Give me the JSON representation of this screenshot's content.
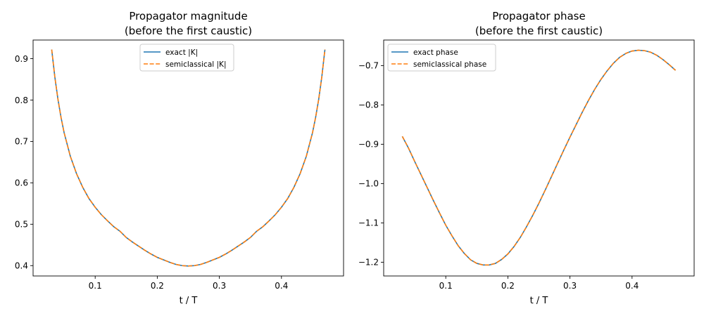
{
  "chart_data": [
    {
      "type": "line",
      "title": [
        "Propagator magnitude",
        "(before the first caustic)"
      ],
      "xlabel": "t / T",
      "ylabel": "",
      "xlim": [
        0.0,
        0.5
      ],
      "ylim": [
        0.375,
        0.945
      ],
      "xticks": [
        0.1,
        0.2,
        0.3,
        0.4
      ],
      "xtick_labels": [
        "0.1",
        "0.2",
        "0.3",
        "0.4"
      ],
      "yticks": [
        0.4,
        0.5,
        0.6,
        0.7,
        0.8,
        0.9
      ],
      "ytick_labels": [
        "0.4",
        "0.5",
        "0.6",
        "0.7",
        "0.8",
        "0.9"
      ],
      "legend_position": "upper center",
      "x": [
        0.03,
        0.035,
        0.04,
        0.045,
        0.05,
        0.06,
        0.07,
        0.08,
        0.09,
        0.1,
        0.11,
        0.12,
        0.13,
        0.14,
        0.15,
        0.16,
        0.17,
        0.18,
        0.19,
        0.2,
        0.21,
        0.22,
        0.23,
        0.24,
        0.25,
        0.26,
        0.27,
        0.28,
        0.29,
        0.3,
        0.31,
        0.32,
        0.33,
        0.34,
        0.35,
        0.36,
        0.37,
        0.38,
        0.39,
        0.4,
        0.41,
        0.42,
        0.43,
        0.44,
        0.45,
        0.455,
        0.46,
        0.465,
        0.47
      ],
      "series": [
        {
          "name": "exact |K|",
          "color": "#1f77b4",
          "style": "solid",
          "values": [
            0.922,
            0.856,
            0.802,
            0.758,
            0.721,
            0.664,
            0.622,
            0.589,
            0.562,
            0.541,
            0.523,
            0.508,
            0.494,
            0.483,
            0.468,
            0.457,
            0.447,
            0.437,
            0.428,
            0.42,
            0.414,
            0.408,
            0.403,
            0.4,
            0.399,
            0.4,
            0.403,
            0.408,
            0.414,
            0.42,
            0.428,
            0.437,
            0.447,
            0.457,
            0.468,
            0.483,
            0.494,
            0.508,
            0.523,
            0.541,
            0.562,
            0.589,
            0.622,
            0.664,
            0.721,
            0.758,
            0.802,
            0.856,
            0.922
          ]
        },
        {
          "name": "semiclassical |K|",
          "color": "#ff7f0e",
          "style": "dashed",
          "values": [
            0.922,
            0.856,
            0.802,
            0.758,
            0.721,
            0.664,
            0.622,
            0.589,
            0.562,
            0.541,
            0.523,
            0.508,
            0.494,
            0.483,
            0.468,
            0.457,
            0.447,
            0.437,
            0.428,
            0.42,
            0.414,
            0.408,
            0.403,
            0.4,
            0.399,
            0.4,
            0.403,
            0.408,
            0.414,
            0.42,
            0.428,
            0.437,
            0.447,
            0.457,
            0.468,
            0.483,
            0.494,
            0.508,
            0.523,
            0.541,
            0.562,
            0.589,
            0.622,
            0.664,
            0.721,
            0.758,
            0.802,
            0.856,
            0.922
          ]
        }
      ]
    },
    {
      "type": "line",
      "title": [
        "Propagator phase",
        "(before the first caustic)"
      ],
      "xlabel": "t / T",
      "ylabel": "",
      "xlim": [
        0.0,
        0.5
      ],
      "ylim": [
        -1.235,
        -0.635
      ],
      "xticks": [
        0.1,
        0.2,
        0.3,
        0.4
      ],
      "xtick_labels": [
        "0.1",
        "0.2",
        "0.3",
        "0.4"
      ],
      "yticks": [
        -1.2,
        -1.1,
        -1.0,
        -0.9,
        -0.8,
        -0.7
      ],
      "ytick_labels": [
        "−1.2",
        "−1.1",
        "−1.0",
        "−0.9",
        "−0.8",
        "−0.7"
      ],
      "legend_position": "upper left",
      "x": [
        0.03,
        0.04,
        0.05,
        0.06,
        0.07,
        0.08,
        0.09,
        0.1,
        0.11,
        0.12,
        0.13,
        0.14,
        0.15,
        0.16,
        0.17,
        0.18,
        0.19,
        0.2,
        0.21,
        0.22,
        0.23,
        0.24,
        0.25,
        0.26,
        0.27,
        0.28,
        0.29,
        0.3,
        0.31,
        0.32,
        0.33,
        0.34,
        0.35,
        0.36,
        0.37,
        0.38,
        0.39,
        0.4,
        0.41,
        0.42,
        0.43,
        0.44,
        0.45,
        0.46,
        0.47
      ],
      "series": [
        {
          "name": "exact phase",
          "color": "#1f77b4",
          "style": "solid",
          "values": [
            -0.88,
            -0.91,
            -0.944,
            -0.977,
            -1.01,
            -1.043,
            -1.075,
            -1.106,
            -1.133,
            -1.158,
            -1.178,
            -1.194,
            -1.203,
            -1.207,
            -1.207,
            -1.203,
            -1.193,
            -1.179,
            -1.16,
            -1.137,
            -1.11,
            -1.081,
            -1.05,
            -1.017,
            -0.983,
            -0.949,
            -0.915,
            -0.882,
            -0.85,
            -0.818,
            -0.788,
            -0.76,
            -0.735,
            -0.713,
            -0.694,
            -0.679,
            -0.669,
            -0.663,
            -0.661,
            -0.662,
            -0.666,
            -0.674,
            -0.685,
            -0.698,
            -0.712
          ]
        },
        {
          "name": "semiclassical phase",
          "color": "#ff7f0e",
          "style": "dashed",
          "values": [
            -0.88,
            -0.91,
            -0.944,
            -0.977,
            -1.01,
            -1.043,
            -1.075,
            -1.106,
            -1.133,
            -1.158,
            -1.178,
            -1.194,
            -1.203,
            -1.207,
            -1.207,
            -1.203,
            -1.193,
            -1.179,
            -1.16,
            -1.137,
            -1.11,
            -1.081,
            -1.05,
            -1.017,
            -0.983,
            -0.949,
            -0.915,
            -0.882,
            -0.85,
            -0.818,
            -0.788,
            -0.76,
            -0.735,
            -0.713,
            -0.694,
            -0.679,
            -0.669,
            -0.663,
            -0.661,
            -0.662,
            -0.666,
            -0.674,
            -0.685,
            -0.698,
            -0.712
          ]
        }
      ]
    }
  ]
}
